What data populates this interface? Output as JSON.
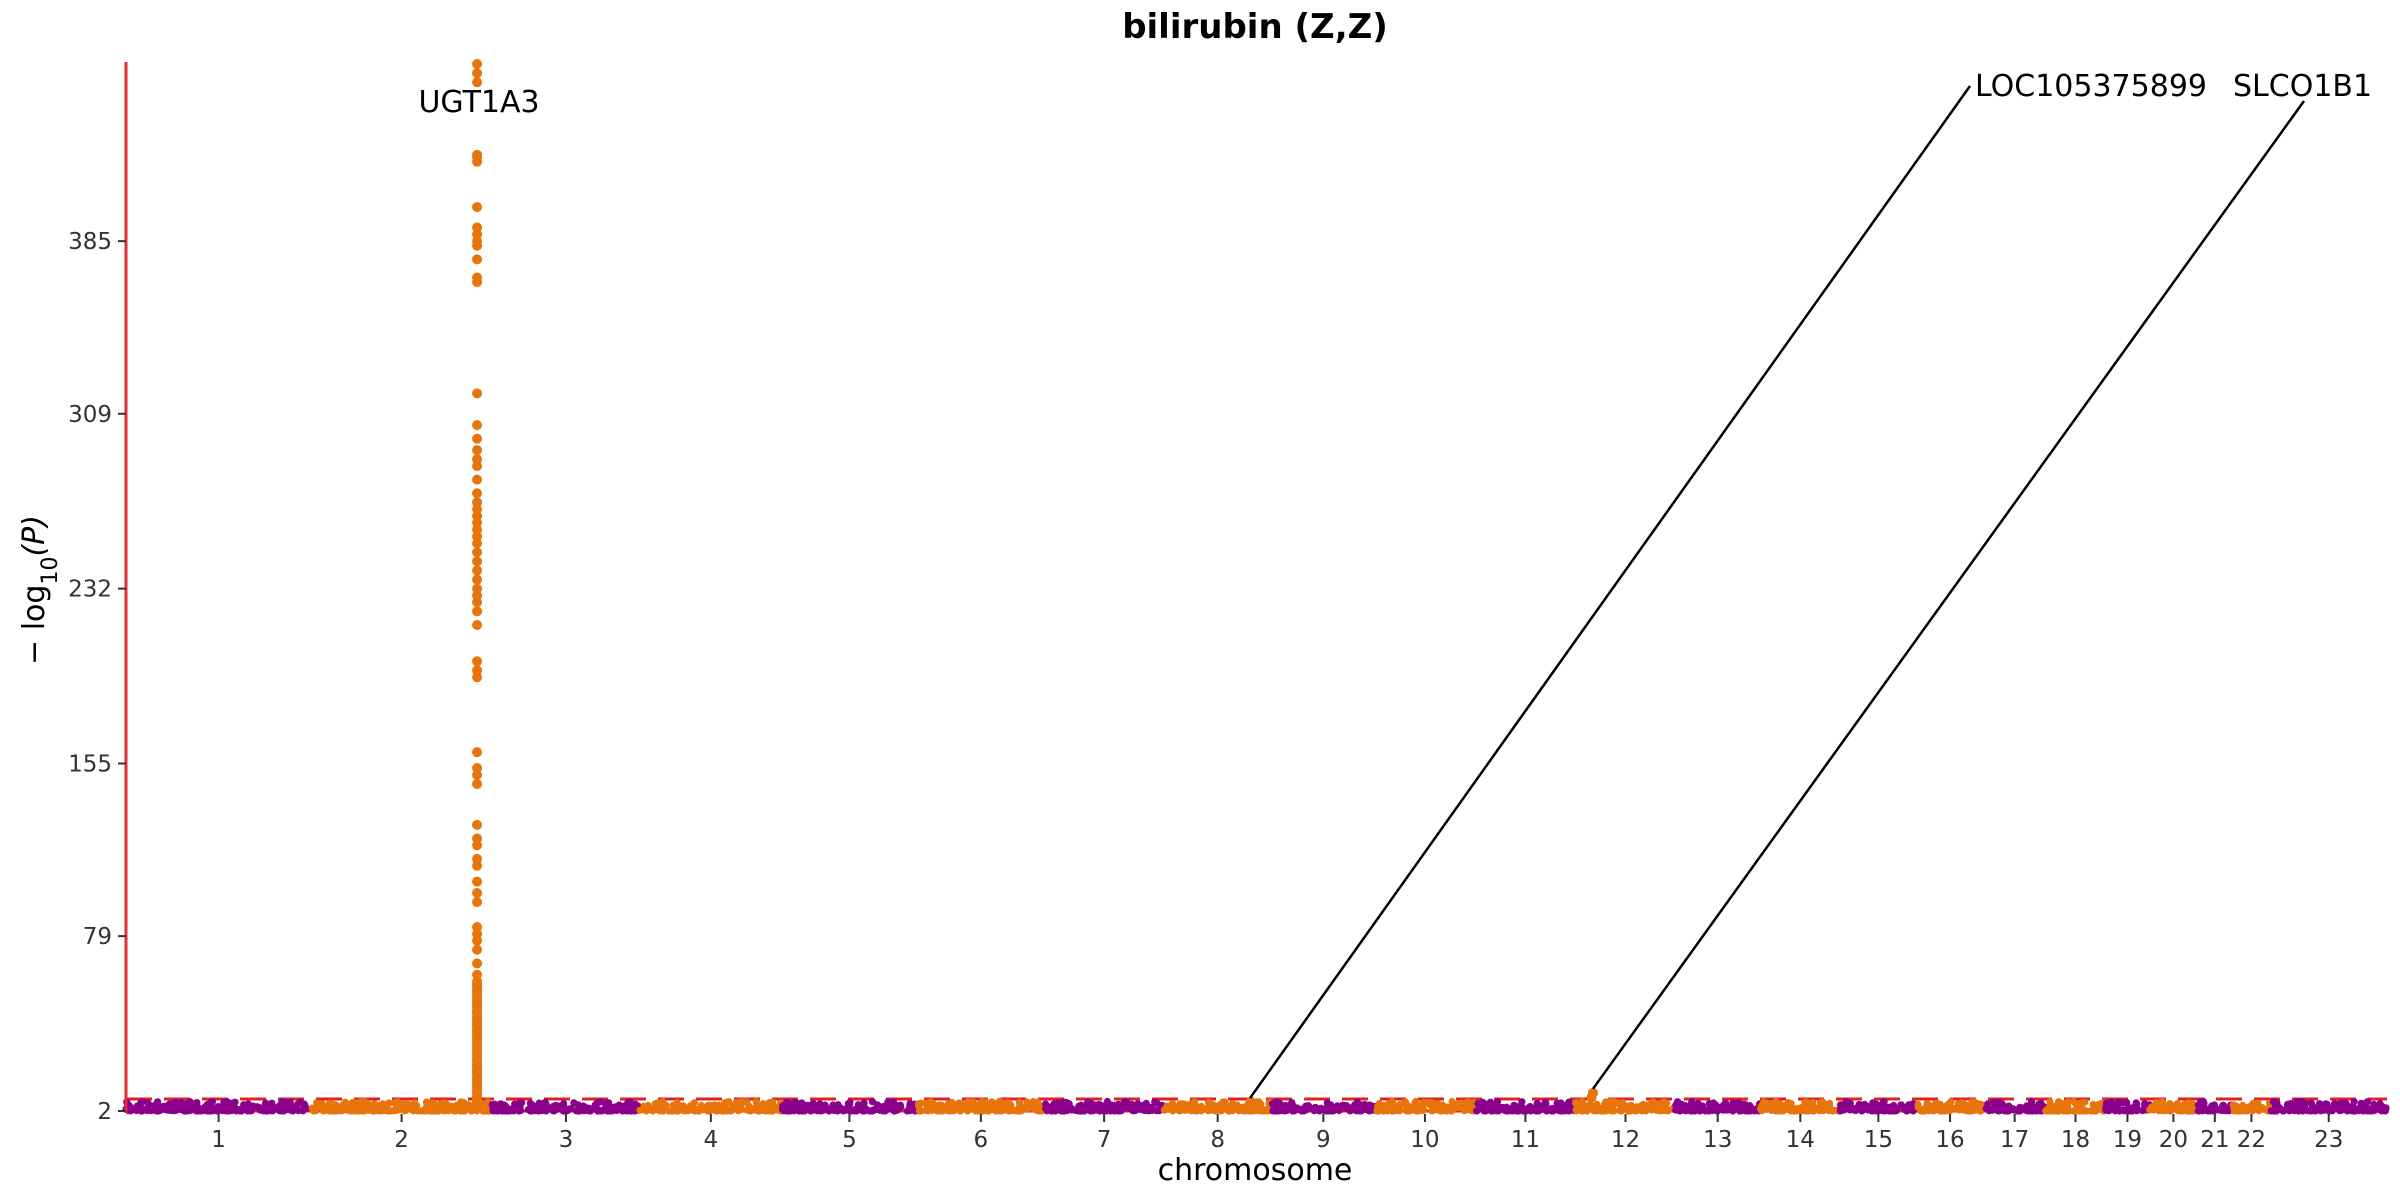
{
  "chart_data": {
    "type": "scatter",
    "title": "bilirubin (Z,Z)",
    "xlabel": "chromosome",
    "ylabel": {
      "prefix": "− log",
      "sub": "10",
      "suffix": "(P)"
    },
    "ylim": [
      2,
      463
    ],
    "yticks": [
      2,
      79,
      155,
      232,
      309,
      385
    ],
    "significance_threshold": 7.3,
    "colors": {
      "odd": "#8B008B",
      "even": "#E8740C",
      "highlight": "#E8740C",
      "axis": "#E03030",
      "threshold": "#E02020",
      "annotation": "#000000"
    },
    "chromosomes": [
      {
        "label": "1",
        "start": 0,
        "end": 248
      },
      {
        "label": "2",
        "start": 248,
        "end": 490
      },
      {
        "label": "3",
        "start": 490,
        "end": 688
      },
      {
        "label": "4",
        "start": 688,
        "end": 878
      },
      {
        "label": "5",
        "start": 878,
        "end": 1059
      },
      {
        "label": "6",
        "start": 1059,
        "end": 1230
      },
      {
        "label": "7",
        "start": 1230,
        "end": 1389
      },
      {
        "label": "8",
        "start": 1389,
        "end": 1534
      },
      {
        "label": "9",
        "start": 1534,
        "end": 1672
      },
      {
        "label": "10",
        "start": 1672,
        "end": 1806
      },
      {
        "label": "11",
        "start": 1806,
        "end": 1941
      },
      {
        "label": "12",
        "start": 1941,
        "end": 2074
      },
      {
        "label": "13",
        "start": 2074,
        "end": 2188
      },
      {
        "label": "14",
        "start": 2188,
        "end": 2295
      },
      {
        "label": "15",
        "start": 2295,
        "end": 2397
      },
      {
        "label": "16",
        "start": 2397,
        "end": 2487
      },
      {
        "label": "17",
        "start": 2487,
        "end": 2570
      },
      {
        "label": "18",
        "start": 2570,
        "end": 2650
      },
      {
        "label": "19",
        "start": 2650,
        "end": 2709
      },
      {
        "label": "20",
        "start": 2709,
        "end": 2773
      },
      {
        "label": "21",
        "start": 2773,
        "end": 2820
      },
      {
        "label": "22",
        "start": 2820,
        "end": 2871
      },
      {
        "label": "23",
        "start": 2871,
        "end": 3027
      }
    ],
    "peak": {
      "chromosome": "2",
      "position": 470,
      "values": [
        463,
        459,
        455,
        423,
        422,
        420,
        400,
        391,
        388,
        385,
        383,
        377,
        369,
        367,
        318,
        304,
        298,
        293,
        289,
        286,
        280,
        274,
        270,
        267,
        264,
        261,
        258,
        255,
        252,
        248,
        244,
        240,
        236,
        232,
        229,
        226,
        222,
        216,
        200,
        196,
        193,
        160,
        153,
        150,
        146,
        128,
        122,
        119,
        113,
        110,
        103,
        98,
        94,
        83,
        80,
        77,
        73,
        67,
        62,
        58,
        55,
        52,
        49,
        46,
        43,
        40,
        37,
        34,
        31,
        28,
        25,
        22,
        19,
        16,
        13,
        10,
        8,
        6,
        4
      ]
    },
    "secondary_hits": [
      {
        "chromosome": "12",
        "position": 1964,
        "value": 10
      },
      {
        "chromosome": "12",
        "position": 1962,
        "value": 8
      },
      {
        "chromosome": "8",
        "position": 1505,
        "value": 6
      }
    ],
    "annotations": [
      {
        "label": "UGT1A3",
        "position": 470,
        "value": 463,
        "leader": false
      },
      {
        "label": "LOC105375899",
        "position": 1505,
        "value": 6,
        "leader": true
      },
      {
        "label": "SLCO1B1",
        "position": 1964,
        "value": 10,
        "leader": true
      }
    ]
  }
}
